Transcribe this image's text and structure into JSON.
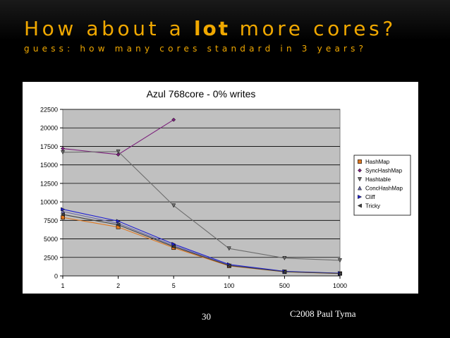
{
  "slide": {
    "title_pre": "How about a ",
    "title_bold": "lot",
    "title_post": " more cores?",
    "subtitle": "guess: how many cores standard in 3 years?",
    "page_number": "30",
    "credit": "C2008 Paul Tyma"
  },
  "colors": {
    "title": "#f0a800",
    "plot_background": "#c0c0c0"
  },
  "chart_data": {
    "type": "line",
    "title": "Azul 768core - 0% writes",
    "xlabel": "",
    "ylabel": "",
    "categories": [
      "1",
      "2",
      "5",
      "100",
      "500",
      "1000"
    ],
    "ylim": [
      0,
      22500
    ],
    "yticks": [
      0,
      2500,
      5000,
      7500,
      10000,
      12500,
      15000,
      17500,
      20000,
      22500
    ],
    "grid": "horizontal",
    "legend": "right",
    "series": [
      {
        "name": "HashMap",
        "color": "#e07820",
        "marker": "square",
        "values": [
          7900,
          6600,
          3800,
          1350,
          550,
          320
        ]
      },
      {
        "name": "SyncHashMap",
        "color": "#7b1f7b",
        "marker": "diamond",
        "values": [
          17200,
          16400,
          21100,
          null,
          null,
          null
        ]
      },
      {
        "name": "Hashtable",
        "color": "#6d6d6d",
        "marker": "triangle-down",
        "values": [
          16700,
          16800,
          9500,
          3700,
          2400,
          2100
        ]
      },
      {
        "name": "ConcHashMap",
        "color": "#6a6aa8",
        "marker": "triangle-up",
        "values": [
          8700,
          7100,
          4100,
          1450,
          580,
          350
        ]
      },
      {
        "name": "Cliff",
        "color": "#2020d0",
        "marker": "triangle-right",
        "values": [
          9000,
          7400,
          4300,
          1550,
          620,
          370
        ]
      },
      {
        "name": "Tricky",
        "color": "#404040",
        "marker": "triangle-left",
        "values": [
          8300,
          6900,
          3950,
          1400,
          560,
          330
        ]
      }
    ]
  }
}
